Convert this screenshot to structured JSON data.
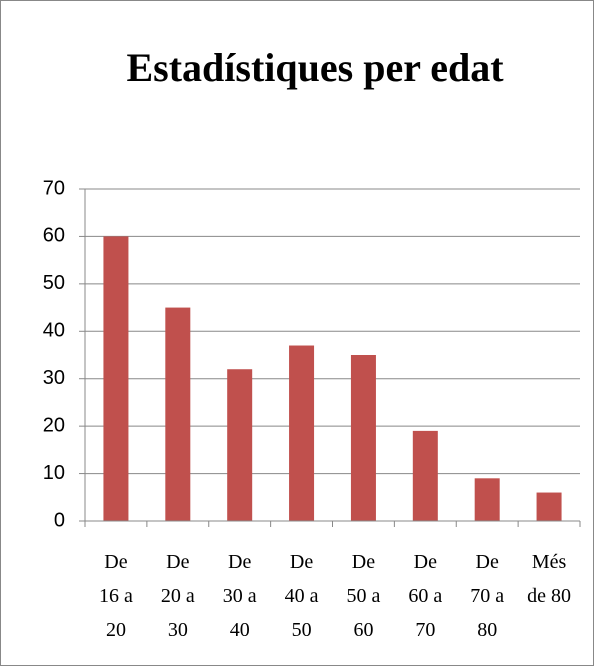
{
  "chart_data": {
    "type": "bar",
    "title": "Estadístiques per edat",
    "categories": [
      "De 16 a 20",
      "De 20 a 30",
      "De 30 a 40",
      "De 40 a 50",
      "De 50 a 60",
      "De 60 a 70",
      "De 70 a 80",
      "Més de 80"
    ],
    "values": [
      60,
      45,
      32,
      37,
      35,
      19,
      9,
      6
    ],
    "color": "#c0504d",
    "ylim": [
      0,
      70
    ],
    "yticks": [
      0,
      10,
      20,
      30,
      40,
      50,
      60,
      70
    ],
    "grid": true
  }
}
